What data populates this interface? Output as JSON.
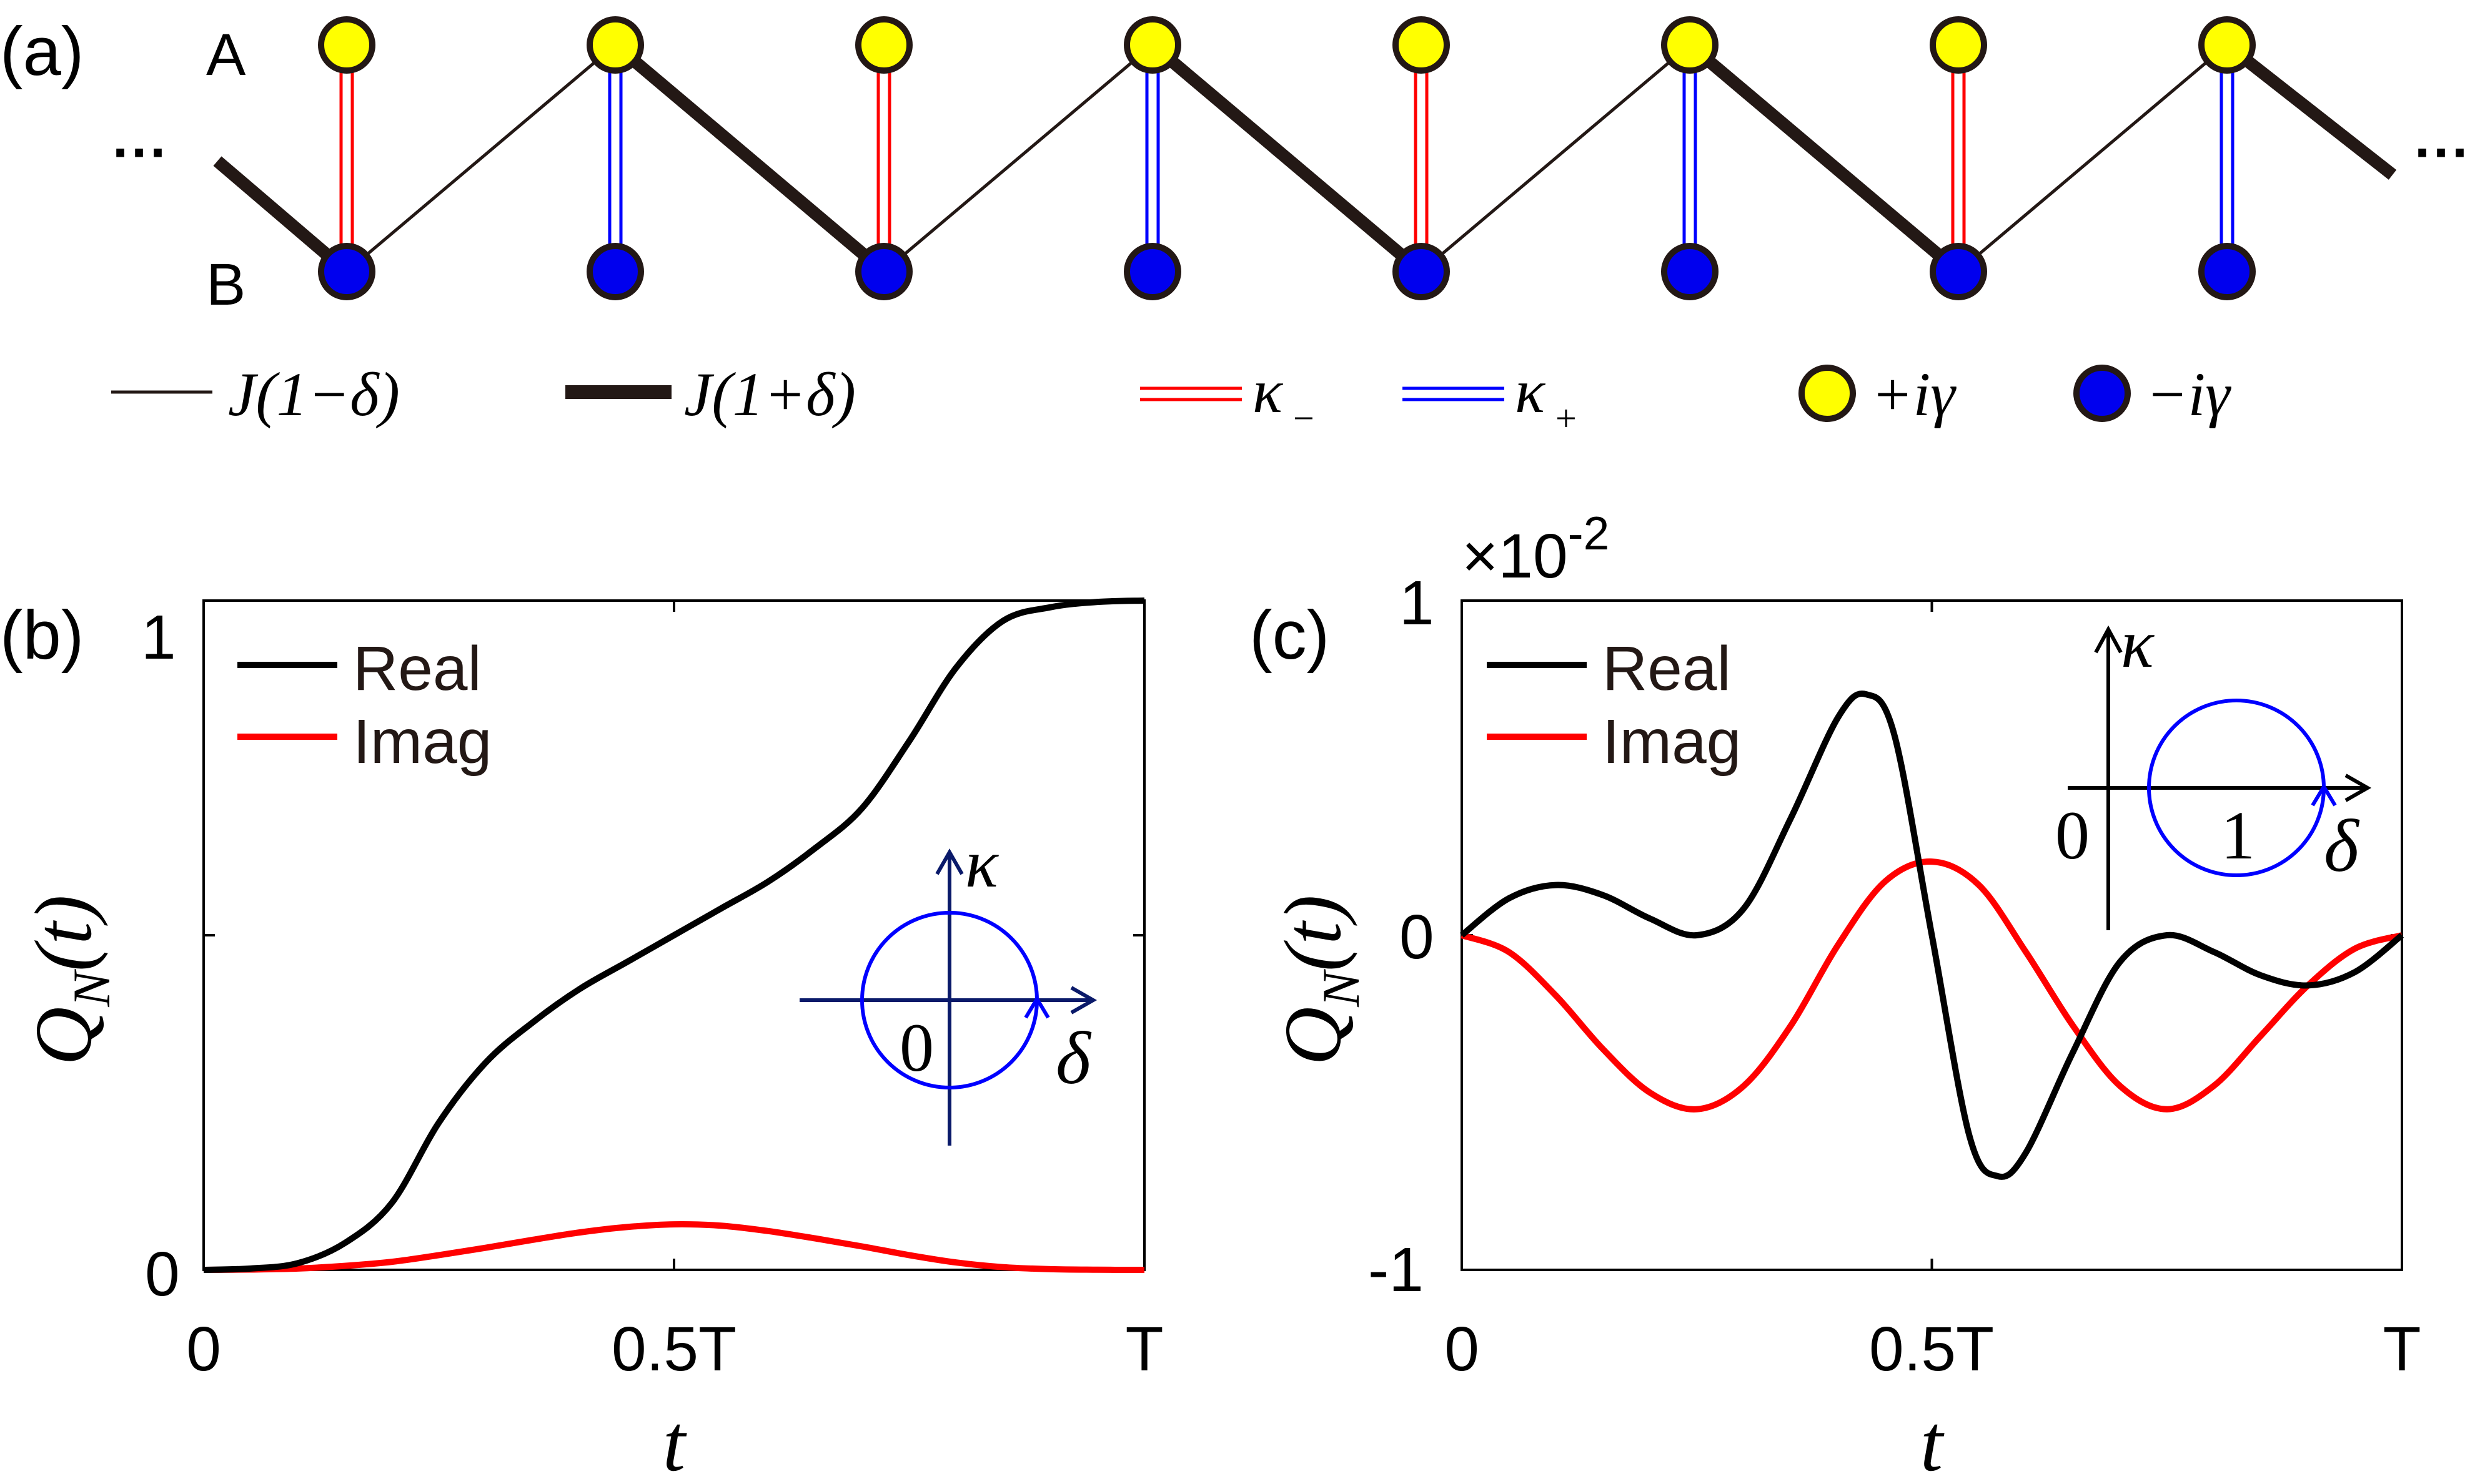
{
  "panel_a": {
    "label": "(a)",
    "row_a_label": "A",
    "row_b_label": "B",
    "ellipsis_left": "···",
    "ellipsis_right": "···",
    "legend": {
      "thin_label": "J(1−δ)",
      "thick_label": "J(1+δ)",
      "kappa_minus_label": "κ",
      "kappa_minus_sub": "−",
      "kappa_plus_label": "κ",
      "kappa_plus_sub": "+",
      "gain_label": "+iγ",
      "loss_label": "−iγ"
    },
    "site_count": 8,
    "colors": {
      "site_a": "#ffff00",
      "site_b": "#0000ee",
      "kappa_minus": "#ff0000",
      "kappa_plus": "#0000ff",
      "bond": "#231815"
    }
  },
  "panel_b": {
    "label": "(b)",
    "ylabel_main": "Q",
    "ylabel_sub": "N",
    "ylabel_arg": "(t)",
    "xlabel": "t",
    "xticks": [
      "0",
      "0.5T",
      "T"
    ],
    "yticks": [
      "0",
      "1"
    ],
    "legend": [
      "Real",
      "Imag"
    ],
    "inset": {
      "y_axis": "κ",
      "x_axis": "δ",
      "origin": "0"
    }
  },
  "panel_c": {
    "label": "(c)",
    "multiplier_prefix": "×10",
    "multiplier_exp": "-2",
    "ylabel_main": "Q",
    "ylabel_sub": "N",
    "ylabel_arg": "(t)",
    "xlabel": "t",
    "xticks": [
      "0",
      "0.5T",
      "T"
    ],
    "yticks": [
      "1",
      "0",
      "-1"
    ],
    "legend": [
      "Real",
      "Imag"
    ],
    "inset": {
      "y_axis": "κ",
      "x_axis": "δ",
      "origin": "0",
      "tick": "1"
    }
  },
  "chart_data": [
    {
      "panel": "b",
      "type": "line",
      "title": "",
      "xlabel": "t",
      "ylabel": "Q_N(t)",
      "xlim": [
        0,
        1
      ],
      "ylim": [
        0,
        1
      ],
      "x_unit": "T",
      "grid": false,
      "legend_position": "top-left",
      "series": [
        {
          "name": "Real",
          "color": "#000000",
          "x": [
            0,
            0.05,
            0.1,
            0.15,
            0.2,
            0.25,
            0.3,
            0.35,
            0.4,
            0.45,
            0.5,
            0.55,
            0.6,
            0.65,
            0.7,
            0.75,
            0.8,
            0.85,
            0.9,
            0.95,
            1
          ],
          "y": [
            0,
            0.002,
            0.01,
            0.04,
            0.1,
            0.22,
            0.31,
            0.37,
            0.42,
            0.46,
            0.5,
            0.54,
            0.58,
            0.63,
            0.69,
            0.79,
            0.9,
            0.97,
            0.99,
            0.998,
            1
          ]
        },
        {
          "name": "Imag",
          "color": "#ff0000",
          "x": [
            0,
            0.05,
            0.1,
            0.15,
            0.2,
            0.25,
            0.3,
            0.35,
            0.4,
            0.45,
            0.5,
            0.55,
            0.6,
            0.65,
            0.7,
            0.75,
            0.8,
            0.85,
            0.9,
            0.95,
            1
          ],
          "y": [
            0,
            0.0005,
            0.002,
            0.006,
            0.012,
            0.022,
            0.033,
            0.045,
            0.056,
            0.064,
            0.068,
            0.066,
            0.058,
            0.047,
            0.035,
            0.022,
            0.011,
            0.004,
            0.001,
            0.0002,
            0
          ]
        }
      ]
    },
    {
      "panel": "c",
      "type": "line",
      "title": "",
      "xlabel": "t",
      "ylabel": "Q_N(t)",
      "xlim": [
        0,
        1
      ],
      "ylim": [
        -1,
        1
      ],
      "y_scale": "×10^-2",
      "x_unit": "T",
      "grid": false,
      "legend_position": "top-left",
      "series": [
        {
          "name": "Real",
          "color": "#000000",
          "x": [
            0,
            0.05,
            0.1,
            0.15,
            0.2,
            0.25,
            0.3,
            0.35,
            0.4,
            0.43,
            0.46,
            0.5,
            0.54,
            0.57,
            0.6,
            0.65,
            0.7,
            0.75,
            0.8,
            0.85,
            0.9,
            0.95,
            1
          ],
          "y": [
            0,
            0.11,
            0.15,
            0.12,
            0.05,
            0.0,
            0.08,
            0.35,
            0.65,
            0.72,
            0.6,
            0.0,
            -0.6,
            -0.72,
            -0.65,
            -0.35,
            -0.08,
            0.0,
            -0.05,
            -0.12,
            -0.15,
            -0.11,
            0
          ]
        },
        {
          "name": "Imag",
          "color": "#ff0000",
          "x": [
            0,
            0.05,
            0.1,
            0.15,
            0.2,
            0.25,
            0.3,
            0.35,
            0.4,
            0.45,
            0.5,
            0.55,
            0.6,
            0.65,
            0.7,
            0.75,
            0.8,
            0.85,
            0.9,
            0.95,
            1
          ],
          "y": [
            0,
            -0.05,
            -0.18,
            -0.34,
            -0.47,
            -0.52,
            -0.45,
            -0.27,
            -0.03,
            0.16,
            0.22,
            0.15,
            -0.05,
            -0.27,
            -0.45,
            -0.52,
            -0.45,
            -0.3,
            -0.15,
            -0.04,
            0
          ]
        }
      ]
    }
  ]
}
